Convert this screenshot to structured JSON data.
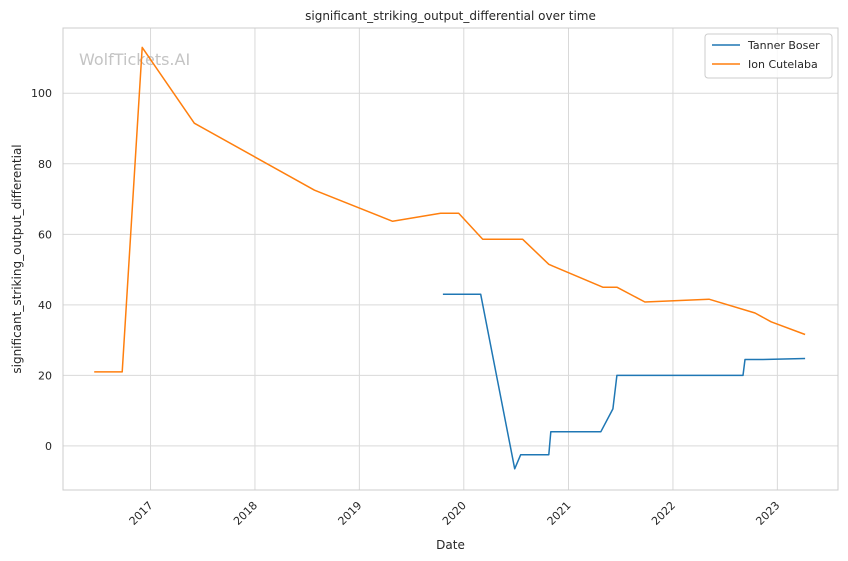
{
  "chart_data": {
    "type": "line",
    "title": "significant_striking_output_differential over time",
    "xlabel": "Date",
    "ylabel": "significant_striking_output_differential",
    "watermark": "WolfTickets.AI",
    "x_range": [
      "2016-03-01",
      "2023-08-01"
    ],
    "ylim": [
      -12.5,
      118.5
    ],
    "x_ticks": [
      "2017",
      "2018",
      "2019",
      "2020",
      "2021",
      "2022",
      "2023"
    ],
    "y_ticks": [
      0,
      20,
      40,
      60,
      80,
      100
    ],
    "grid": true,
    "legend_position": "top-right",
    "series": [
      {
        "name": "Tanner Boser",
        "color": "#1f77b4",
        "points": [
          {
            "x": "2019-10-20",
            "y": 43
          },
          {
            "x": "2020-02-29",
            "y": 43
          },
          {
            "x": "2020-06-27",
            "y": -6.5
          },
          {
            "x": "2020-07-18",
            "y": -2.5
          },
          {
            "x": "2020-10-24",
            "y": -2.5
          },
          {
            "x": "2020-10-31",
            "y": 4
          },
          {
            "x": "2021-04-24",
            "y": 4
          },
          {
            "x": "2021-06-05",
            "y": 10.5
          },
          {
            "x": "2021-06-19",
            "y": 20
          },
          {
            "x": "2022-09-03",
            "y": 20
          },
          {
            "x": "2022-09-10",
            "y": 24.5
          },
          {
            "x": "2022-11-12",
            "y": 24.5
          },
          {
            "x": "2023-04-08",
            "y": 24.8
          }
        ]
      },
      {
        "name": "Ion Cutelaba",
        "color": "#ff7f0e",
        "points": [
          {
            "x": "2016-06-18",
            "y": 21
          },
          {
            "x": "2016-09-24",
            "y": 21
          },
          {
            "x": "2016-12-03",
            "y": 113
          },
          {
            "x": "2017-06-03",
            "y": 91.5
          },
          {
            "x": "2018-07-28",
            "y": 72.5
          },
          {
            "x": "2019-04-27",
            "y": 63.7
          },
          {
            "x": "2019-10-12",
            "y": 66
          },
          {
            "x": "2019-12-14",
            "y": 66
          },
          {
            "x": "2020-03-07",
            "y": 58.6
          },
          {
            "x": "2020-07-25",
            "y": 58.6
          },
          {
            "x": "2020-10-24",
            "y": 51.5
          },
          {
            "x": "2020-11-07",
            "y": 51
          },
          {
            "x": "2021-05-01",
            "y": 45
          },
          {
            "x": "2021-06-19",
            "y": 45
          },
          {
            "x": "2021-09-25",
            "y": 40.8
          },
          {
            "x": "2022-05-07",
            "y": 41.6
          },
          {
            "x": "2022-10-15",
            "y": 37.7
          },
          {
            "x": "2022-12-10",
            "y": 35.2
          },
          {
            "x": "2023-04-08",
            "y": 31.6
          }
        ]
      }
    ]
  }
}
